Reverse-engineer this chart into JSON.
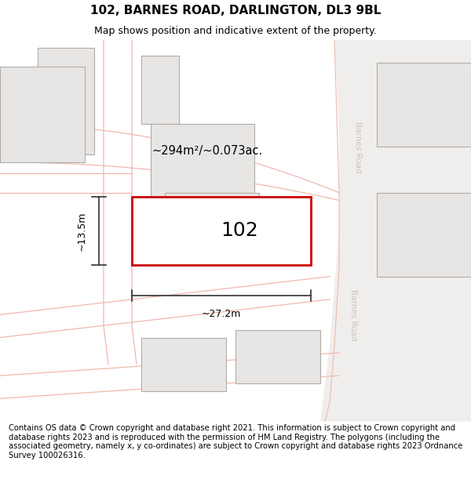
{
  "title": "102, BARNES ROAD, DARLINGTON, DL3 9BL",
  "subtitle": "Map shows position and indicative extent of the property.",
  "footer": "Contains OS data © Crown copyright and database right 2021. This information is subject to Crown copyright and database rights 2023 and is reproduced with the permission of HM Land Registry. The polygons (including the associated geometry, namely x, y co-ordinates) are subject to Crown copyright and database rights 2023 Ordnance Survey 100026316.",
  "map_bg": "#ffffff",
  "highlight_color": "#cc0000",
  "building_fill": "#e8e6e4",
  "building_edge": "#b0aca8",
  "road_line_color": "#f0b8b0",
  "road_bg_color": "#e8e4e0",
  "barnes_road_color": "#c8c4c0",
  "dimension_color": "#333333",
  "text_color": "#000000",
  "label_102": "102",
  "area_label": "~294m²/~0.073ac.",
  "width_label": "~27.2m",
  "height_label": "~13.5m",
  "road_label": "Barnes Road",
  "title_fontsize": 11,
  "subtitle_fontsize": 9,
  "footer_fontsize": 7.2
}
